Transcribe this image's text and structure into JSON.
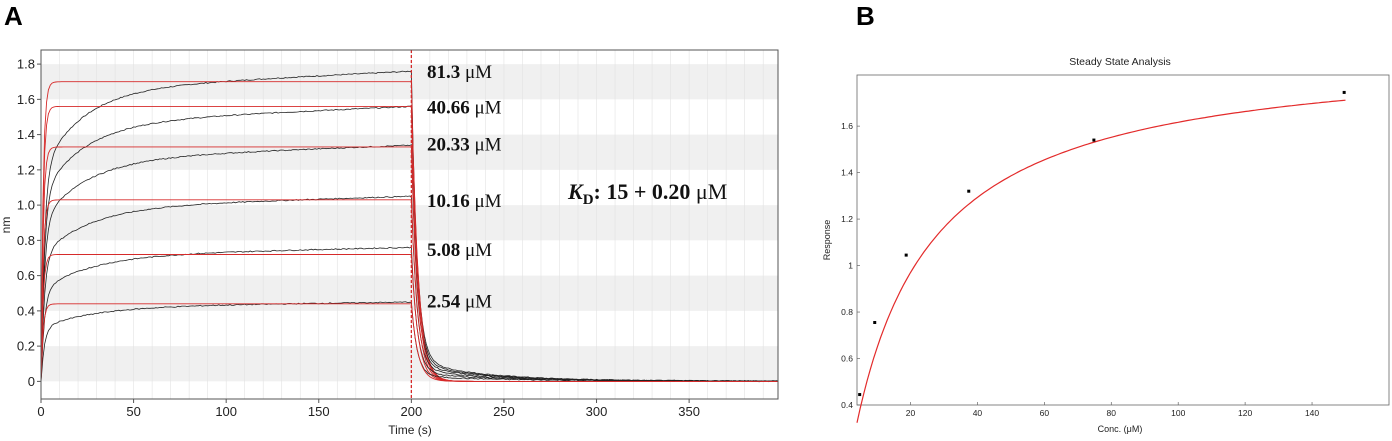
{
  "figure": {
    "panel_a_letter": "A",
    "panel_b_letter": "B"
  },
  "chart_data": [
    {
      "type": "line",
      "panel": "A",
      "xlabel": "Time (s)",
      "ylabel": "nm",
      "xlim": [
        0,
        398
      ],
      "ylim": [
        -0.1,
        1.88
      ],
      "xticks": [
        "0",
        "50",
        "100",
        "150",
        "200",
        "250",
        "300",
        "350"
      ],
      "yticks": [
        "0",
        "0.2",
        "0.4",
        "0.6",
        "0.8",
        "1.0",
        "1.2",
        "1.4",
        "1.6",
        "1.8"
      ],
      "dissociation_start": 200,
      "background": "alternating light grey horizontal bands",
      "series": [
        {
          "conc": "81.3",
          "unit": " μM",
          "data_end": 1.76,
          "fit_plateau": 1.7,
          "label_y": 1.76
        },
        {
          "conc": "40.66",
          "unit": " μM",
          "data_end": 1.56,
          "fit_plateau": 1.56,
          "label_y": 1.56
        },
        {
          "conc": "20.33",
          "unit": " μM",
          "data_end": 1.34,
          "fit_plateau": 1.33,
          "label_y": 1.35
        },
        {
          "conc": "10.16",
          "unit": " μM",
          "data_end": 1.05,
          "fit_plateau": 1.03,
          "label_y": 1.03
        },
        {
          "conc": "5.08",
          "unit": " μM",
          "data_end": 0.76,
          "fit_plateau": 0.72,
          "label_y": 0.75
        },
        {
          "conc": "2.54",
          "unit": " μM",
          "data_end": 0.45,
          "fit_plateau": 0.44,
          "label_y": 0.46
        }
      ],
      "kd_annotation": {
        "symbol": "K",
        "subscript": "D",
        "text": ": 15 + 0.20 ",
        "unit": "μM"
      },
      "colors": {
        "data": "#222222",
        "fit": "#d62a2a",
        "band": "#f0f0f0"
      }
    },
    {
      "type": "scatter",
      "panel": "B",
      "title": "Steady State Analysis",
      "xlabel": "Conc. (μM)",
      "ylabel": "Response",
      "xlim": [
        4,
        163
      ],
      "ylim": [
        0.4,
        1.82
      ],
      "xticks": [
        20,
        40,
        60,
        80,
        100,
        120,
        140
      ],
      "yticks": [
        "0.4",
        "0.6",
        "0.8",
        "1",
        "1.2",
        "1.4",
        "1.6"
      ],
      "points": [
        {
          "x": 4.8,
          "y": 0.445
        },
        {
          "x": 9.3,
          "y": 0.755
        },
        {
          "x": 18.7,
          "y": 1.045
        },
        {
          "x": 37.4,
          "y": 1.32
        },
        {
          "x": 74.8,
          "y": 1.54
        },
        {
          "x": 149.6,
          "y": 1.745
        }
      ],
      "fit": {
        "model": "steady-state binding",
        "Rmax": 1.94,
        "KD": 20
      },
      "colors": {
        "points": "#000000",
        "fit": "#e32b2b"
      }
    }
  ]
}
